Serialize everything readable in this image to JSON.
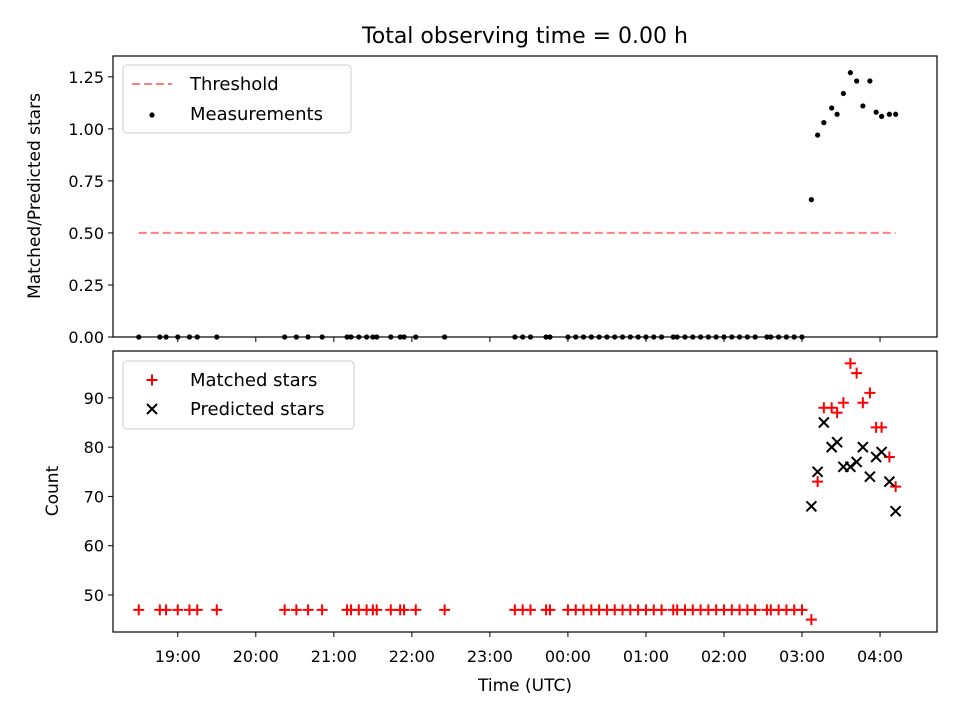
{
  "title": "Total observing time = 0.00 h",
  "colors": {
    "threshold": "#ff7f7f",
    "measurement": "#000000",
    "matched": "#ff0000",
    "predicted": "#000000"
  },
  "chart_data": [
    {
      "type": "scatter",
      "panel": "top",
      "ylabel": "Matched/Predicted stars",
      "xlim": [
        18.17,
        28.73
      ],
      "ylim": [
        0,
        1.35
      ],
      "yticks": [
        0.0,
        0.25,
        0.5,
        0.75,
        1.0,
        1.25
      ],
      "ytick_labels": [
        "0.00",
        "0.25",
        "0.50",
        "0.75",
        "1.00",
        "1.25"
      ],
      "legend_placement": "top-left",
      "legend": [
        "Threshold",
        "Measurements"
      ],
      "series": [
        {
          "name": "Threshold",
          "kind": "dashed-line",
          "x": [
            18.5,
            28.2
          ],
          "y": [
            0.5,
            0.5
          ]
        },
        {
          "name": "Measurements",
          "kind": "dots",
          "x": [
            18.5,
            18.77,
            18.85,
            19.0,
            19.15,
            19.25,
            19.5,
            20.37,
            20.52,
            20.67,
            20.85,
            21.17,
            21.22,
            21.32,
            21.42,
            21.5,
            21.55,
            21.73,
            21.85,
            21.9,
            22.05,
            22.42,
            23.32,
            23.42,
            23.52,
            23.72,
            23.77,
            24.0,
            24.1,
            24.2,
            24.3,
            24.4,
            24.5,
            24.6,
            24.7,
            24.8,
            24.9,
            25.0,
            25.1,
            25.2,
            25.35,
            25.4,
            25.5,
            25.6,
            25.7,
            25.8,
            25.9,
            26.0,
            26.1,
            26.2,
            26.3,
            26.4,
            26.55,
            26.6,
            26.7,
            26.8,
            26.9,
            27.0,
            27.12,
            27.2,
            27.28,
            27.38,
            27.45,
            27.53,
            27.62,
            27.7,
            27.78,
            27.87,
            27.95,
            28.02,
            28.12,
            28.2
          ],
          "y": [
            0,
            0,
            0,
            0,
            0,
            0,
            0,
            0,
            0,
            0,
            0,
            0,
            0,
            0,
            0,
            0,
            0,
            0,
            0,
            0,
            0,
            0,
            0,
            0,
            0,
            0,
            0,
            0,
            0,
            0,
            0,
            0,
            0,
            0,
            0,
            0,
            0,
            0,
            0,
            0,
            0,
            0,
            0,
            0,
            0,
            0,
            0,
            0,
            0,
            0,
            0,
            0,
            0,
            0,
            0,
            0,
            0,
            0,
            0.66,
            0.97,
            1.03,
            1.1,
            1.07,
            1.17,
            1.27,
            1.23,
            1.11,
            1.23,
            1.08,
            1.06,
            1.07,
            1.07
          ]
        }
      ]
    },
    {
      "type": "scatter",
      "panel": "bottom",
      "xlabel": "Time (UTC)",
      "ylabel": "Count",
      "xlim": [
        18.17,
        28.73
      ],
      "ylim": [
        42.5,
        99.5
      ],
      "xticks": [
        19,
        20,
        21,
        22,
        23,
        24,
        25,
        26,
        27,
        28
      ],
      "xtick_labels": [
        "19:00",
        "20:00",
        "21:00",
        "22:00",
        "23:00",
        "00:00",
        "01:00",
        "02:00",
        "03:00",
        "04:00"
      ],
      "yticks": [
        50,
        60,
        70,
        80,
        90
      ],
      "ytick_labels": [
        "50",
        "60",
        "70",
        "80",
        "90"
      ],
      "legend_placement": "top-left",
      "legend": [
        "Matched stars",
        "Predicted stars"
      ],
      "series": [
        {
          "name": "Matched stars",
          "kind": "plus",
          "x": [
            18.5,
            18.77,
            18.85,
            19.0,
            19.15,
            19.25,
            19.5,
            20.37,
            20.52,
            20.67,
            20.85,
            21.17,
            21.22,
            21.32,
            21.42,
            21.5,
            21.55,
            21.73,
            21.85,
            21.9,
            22.05,
            22.42,
            23.32,
            23.42,
            23.52,
            23.72,
            23.77,
            24.0,
            24.1,
            24.2,
            24.3,
            24.4,
            24.5,
            24.6,
            24.7,
            24.8,
            24.9,
            25.0,
            25.1,
            25.2,
            25.35,
            25.4,
            25.5,
            25.6,
            25.7,
            25.8,
            25.9,
            26.0,
            26.1,
            26.2,
            26.3,
            26.4,
            26.55,
            26.6,
            26.7,
            26.8,
            26.9,
            27.0,
            27.12,
            27.2,
            27.28,
            27.38,
            27.45,
            27.53,
            27.62,
            27.7,
            27.78,
            27.87,
            27.95,
            28.02,
            28.12,
            28.2
          ],
          "y": [
            47,
            47,
            47,
            47,
            47,
            47,
            47,
            47,
            47,
            47,
            47,
            47,
            47,
            47,
            47,
            47,
            47,
            47,
            47,
            47,
            47,
            47,
            47,
            47,
            47,
            47,
            47,
            47,
            47,
            47,
            47,
            47,
            47,
            47,
            47,
            47,
            47,
            47,
            47,
            47,
            47,
            47,
            47,
            47,
            47,
            47,
            47,
            47,
            47,
            47,
            47,
            47,
            47,
            47,
            47,
            47,
            47,
            47,
            45,
            73,
            88,
            88,
            87,
            89,
            97,
            95,
            89,
            91,
            84,
            84,
            78,
            72
          ]
        },
        {
          "name": "Predicted stars",
          "kind": "x",
          "x": [
            27.12,
            27.2,
            27.28,
            27.38,
            27.45,
            27.53,
            27.62,
            27.7,
            27.78,
            27.87,
            27.95,
            28.02,
            28.12,
            28.2
          ],
          "y": [
            68,
            75,
            85,
            80,
            81,
            76,
            76,
            77,
            80,
            74,
            78,
            79,
            73,
            67
          ]
        }
      ]
    }
  ]
}
